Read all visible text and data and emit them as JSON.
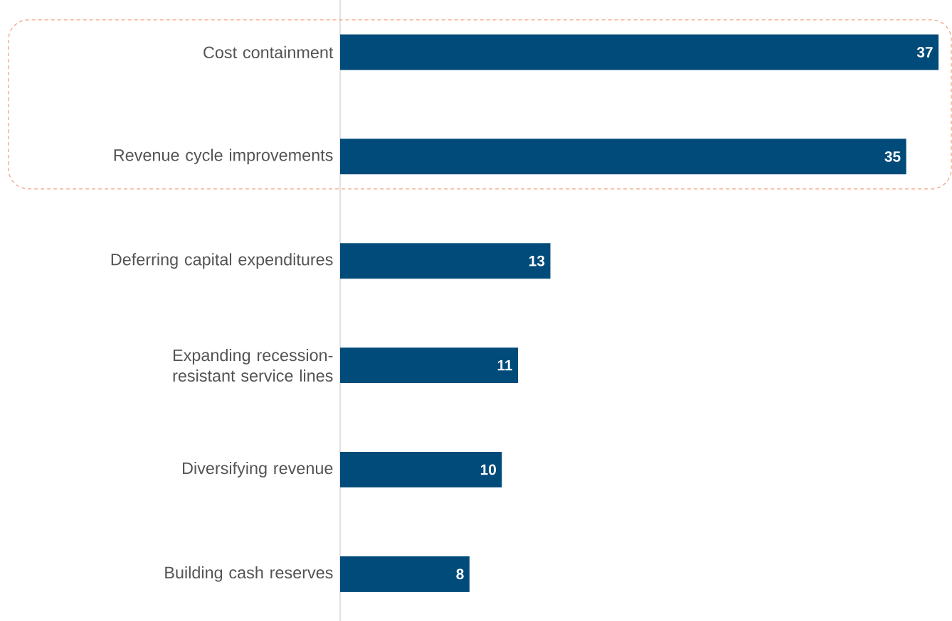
{
  "chart_data": {
    "type": "bar",
    "orientation": "horizontal",
    "categories": [
      "Cost containment",
      "Revenue cycle improvements",
      "Deferring capital expenditures",
      "Expanding recession-resistant service lines",
      "Diversifying revenue",
      "Building cash reserves"
    ],
    "values": [
      37,
      35,
      13,
      11,
      10,
      8
    ],
    "color": "#004b7a",
    "data_labels": true,
    "tick_labels": "y"
  }
}
